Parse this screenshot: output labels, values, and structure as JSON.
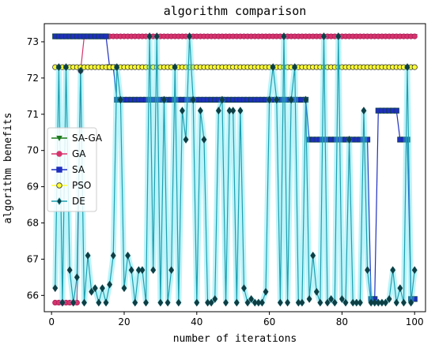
{
  "chart_data": {
    "type": "line",
    "title": "algorithm comparison",
    "xlabel": "number of iterations",
    "ylabel": "algorithm benefits",
    "xlim": [
      -2,
      103
    ],
    "ylim": [
      65.55,
      73.5
    ],
    "xticks": [
      0,
      20,
      40,
      60,
      80,
      100
    ],
    "yticks": [
      66,
      67,
      68,
      69,
      70,
      71,
      72,
      73
    ],
    "grid": false,
    "legend_position": "center-left",
    "series": [
      {
        "name": "SA-GA",
        "color": "#1b7a1b",
        "marker": "triangle-down",
        "values_desc": "constant after start",
        "x": [
          1,
          2,
          3,
          4,
          5,
          6,
          7,
          8,
          9,
          10,
          11,
          12,
          13,
          14,
          15,
          16,
          17,
          18,
          19,
          20,
          21,
          22,
          23,
          24,
          25,
          26,
          27,
          28,
          29,
          30,
          31,
          32,
          33,
          34,
          35,
          36,
          37,
          38,
          39,
          40,
          41,
          42,
          43,
          44,
          45,
          46,
          47,
          48,
          49,
          50,
          51,
          52,
          53,
          54,
          55,
          56,
          57,
          58,
          59,
          60,
          61,
          62,
          63,
          64,
          65,
          66,
          67,
          68,
          69,
          70,
          71,
          72,
          73,
          74,
          75,
          76,
          77,
          78,
          79,
          80,
          81,
          82,
          83,
          84,
          85,
          86,
          87,
          88,
          89,
          90,
          91,
          92,
          93,
          94,
          95,
          96,
          97,
          98,
          99,
          100
        ],
        "y": [
          73.15,
          73.15,
          73.15,
          73.15,
          73.15,
          73.15,
          73.15,
          73.15,
          73.15,
          73.15,
          73.15,
          73.15,
          73.15,
          73.15,
          73.15,
          73.15,
          73.15,
          73.15,
          73.15,
          73.15,
          73.15,
          73.15,
          73.15,
          73.15,
          73.15,
          73.15,
          73.15,
          73.15,
          73.15,
          73.15,
          73.15,
          73.15,
          73.15,
          73.15,
          73.15,
          73.15,
          73.15,
          73.15,
          73.15,
          73.15,
          73.15,
          73.15,
          73.15,
          73.15,
          73.15,
          73.15,
          73.15,
          73.15,
          73.15,
          73.15,
          73.15,
          73.15,
          73.15,
          73.15,
          73.15,
          73.15,
          73.15,
          73.15,
          73.15,
          73.15,
          73.15,
          73.15,
          73.15,
          73.15,
          73.15,
          73.15,
          73.15,
          73.15,
          73.15,
          73.15,
          73.15,
          73.15,
          73.15,
          73.15,
          73.15,
          73.15,
          73.15,
          73.15,
          73.15,
          73.15,
          73.15,
          73.15,
          73.15,
          73.15,
          73.15,
          73.15,
          73.15,
          73.15,
          73.15,
          73.15,
          73.15,
          73.15,
          73.15,
          73.15,
          73.15,
          73.15,
          73.15,
          73.15,
          73.15,
          73.15
        ]
      },
      {
        "name": "GA",
        "color": "#d6336c",
        "marker": "circle",
        "x": [
          1,
          2,
          3,
          4,
          5,
          6,
          7,
          8,
          9,
          10,
          11,
          12,
          13,
          14,
          15,
          16,
          17,
          18,
          19,
          20,
          21,
          22,
          23,
          24,
          25,
          26,
          27,
          28,
          29,
          30,
          31,
          32,
          33,
          34,
          35,
          36,
          37,
          38,
          39,
          40,
          41,
          42,
          43,
          44,
          45,
          46,
          47,
          48,
          49,
          50,
          51,
          52,
          53,
          54,
          55,
          56,
          57,
          58,
          59,
          60,
          61,
          62,
          63,
          64,
          65,
          66,
          67,
          68,
          69,
          70,
          71,
          72,
          73,
          74,
          75,
          76,
          77,
          78,
          79,
          80,
          81,
          82,
          83,
          84,
          85,
          86,
          87,
          88,
          89,
          90,
          91,
          92,
          93,
          94,
          95,
          96,
          97,
          98,
          99,
          100
        ],
        "y": [
          65.8,
          65.8,
          65.8,
          65.8,
          65.8,
          65.8,
          65.8,
          72.2,
          73.15,
          73.15,
          73.15,
          73.15,
          73.15,
          73.15,
          73.15,
          73.15,
          73.15,
          73.15,
          73.15,
          73.15,
          73.15,
          73.15,
          73.15,
          73.15,
          73.15,
          73.15,
          73.15,
          73.15,
          73.15,
          73.15,
          73.15,
          73.15,
          73.15,
          73.15,
          73.15,
          73.15,
          73.15,
          73.15,
          73.15,
          73.15,
          73.15,
          73.15,
          73.15,
          73.15,
          73.15,
          73.15,
          73.15,
          73.15,
          73.15,
          73.15,
          73.15,
          73.15,
          73.15,
          73.15,
          73.15,
          73.15,
          73.15,
          73.15,
          73.15,
          73.15,
          73.15,
          73.15,
          73.15,
          73.15,
          73.15,
          73.15,
          73.15,
          73.15,
          73.15,
          73.15,
          73.15,
          73.15,
          73.15,
          73.15,
          73.15,
          73.15,
          73.15,
          73.15,
          73.15,
          73.15,
          73.15,
          73.15,
          73.15,
          73.15,
          73.15,
          73.15,
          73.15,
          73.15,
          73.15,
          73.15,
          73.15,
          73.15,
          73.15,
          73.15,
          73.15,
          73.15,
          73.15,
          73.15,
          73.15,
          73.15
        ]
      },
      {
        "name": "SA",
        "color": "#1f2fbf",
        "marker": "square",
        "x": [
          1,
          2,
          3,
          4,
          5,
          6,
          7,
          8,
          9,
          10,
          11,
          12,
          13,
          14,
          15,
          16,
          17,
          18,
          19,
          20,
          21,
          22,
          23,
          24,
          25,
          26,
          27,
          28,
          29,
          30,
          31,
          32,
          33,
          34,
          35,
          36,
          37,
          38,
          39,
          40,
          41,
          42,
          43,
          44,
          45,
          46,
          47,
          48,
          49,
          50,
          51,
          52,
          53,
          54,
          55,
          56,
          57,
          58,
          59,
          60,
          61,
          62,
          63,
          64,
          65,
          66,
          67,
          68,
          69,
          70,
          71,
          72,
          73,
          74,
          75,
          76,
          77,
          78,
          79,
          80,
          81,
          82,
          83,
          84,
          85,
          86,
          87,
          88,
          89,
          90,
          91,
          92,
          93,
          94,
          95,
          96,
          97,
          98,
          99,
          100
        ],
        "y": [
          73.15,
          73.15,
          73.15,
          73.15,
          73.15,
          73.15,
          73.15,
          73.15,
          73.15,
          73.15,
          73.15,
          73.15,
          73.15,
          73.15,
          73.15,
          72.3,
          72.3,
          71.4,
          71.4,
          71.4,
          71.4,
          71.4,
          71.4,
          71.4,
          71.4,
          71.4,
          71.4,
          71.4,
          71.4,
          71.4,
          71.4,
          71.4,
          71.4,
          71.4,
          71.4,
          71.4,
          71.4,
          71.4,
          71.4,
          71.4,
          71.4,
          71.4,
          71.4,
          71.4,
          71.4,
          71.4,
          71.4,
          71.4,
          71.4,
          71.4,
          71.4,
          71.4,
          71.4,
          71.4,
          71.4,
          71.4,
          71.4,
          71.4,
          71.4,
          71.4,
          71.4,
          71.4,
          71.4,
          71.4,
          71.4,
          71.4,
          71.4,
          71.4,
          71.4,
          71.4,
          70.3,
          70.3,
          70.3,
          70.3,
          70.3,
          70.3,
          70.3,
          70.3,
          70.3,
          70.3,
          70.3,
          70.3,
          70.3,
          70.3,
          70.3,
          70.3,
          70.3,
          65.9,
          65.9,
          71.1,
          71.1,
          71.1,
          71.1,
          71.1,
          71.1,
          70.3,
          70.3,
          70.3,
          65.9,
          65.9
        ]
      },
      {
        "name": "PSO",
        "color": "#ffff33",
        "edge": "#333333",
        "marker": "circle",
        "x": [
          1,
          2,
          3,
          4,
          5,
          6,
          7,
          8,
          9,
          10,
          11,
          12,
          13,
          14,
          15,
          16,
          17,
          18,
          19,
          20,
          21,
          22,
          23,
          24,
          25,
          26,
          27,
          28,
          29,
          30,
          31,
          32,
          33,
          34,
          35,
          36,
          37,
          38,
          39,
          40,
          41,
          42,
          43,
          44,
          45,
          46,
          47,
          48,
          49,
          50,
          51,
          52,
          53,
          54,
          55,
          56,
          57,
          58,
          59,
          60,
          61,
          62,
          63,
          64,
          65,
          66,
          67,
          68,
          69,
          70,
          71,
          72,
          73,
          74,
          75,
          76,
          77,
          78,
          79,
          80,
          81,
          82,
          83,
          84,
          85,
          86,
          87,
          88,
          89,
          90,
          91,
          92,
          93,
          94,
          95,
          96,
          97,
          98,
          99,
          100
        ],
        "y": [
          72.3,
          72.3,
          72.3,
          72.3,
          72.3,
          72.3,
          72.3,
          72.3,
          72.3,
          72.3,
          72.3,
          72.3,
          72.3,
          72.3,
          72.3,
          72.3,
          72.3,
          72.3,
          72.3,
          72.3,
          72.3,
          72.3,
          72.3,
          72.3,
          72.3,
          72.3,
          72.3,
          72.3,
          72.3,
          72.3,
          72.3,
          72.3,
          72.3,
          72.3,
          72.3,
          72.3,
          72.3,
          72.3,
          72.3,
          72.3,
          72.3,
          72.3,
          72.3,
          72.3,
          72.3,
          72.3,
          72.3,
          72.3,
          72.3,
          72.3,
          72.3,
          72.3,
          72.3,
          72.3,
          72.3,
          72.3,
          72.3,
          72.3,
          72.3,
          72.3,
          72.3,
          72.3,
          72.3,
          72.3,
          72.3,
          72.3,
          72.3,
          72.3,
          72.3,
          72.3,
          72.3,
          72.3,
          72.3,
          72.3,
          72.3,
          72.3,
          72.3,
          72.3,
          72.3,
          72.3,
          72.3,
          72.3,
          72.3,
          72.3,
          72.3,
          72.3,
          72.3,
          72.3,
          72.3,
          72.3,
          72.3,
          72.3,
          72.3,
          72.3,
          72.3,
          72.3,
          72.3,
          72.3,
          72.3,
          72.3
        ]
      },
      {
        "name": "DE",
        "color": "#1f9faf",
        "glow": "#40e0f0",
        "marker": "diamond",
        "x": [
          1,
          2,
          3,
          4,
          5,
          6,
          7,
          8,
          9,
          10,
          11,
          12,
          13,
          14,
          15,
          16,
          17,
          18,
          19,
          20,
          21,
          22,
          23,
          24,
          25,
          26,
          27,
          28,
          29,
          30,
          31,
          32,
          33,
          34,
          35,
          36,
          37,
          38,
          39,
          40,
          41,
          42,
          43,
          44,
          45,
          46,
          47,
          48,
          49,
          50,
          51,
          52,
          53,
          54,
          55,
          56,
          57,
          58,
          59,
          60,
          61,
          62,
          63,
          64,
          65,
          66,
          67,
          68,
          69,
          70,
          71,
          72,
          73,
          74,
          75,
          76,
          77,
          78,
          79,
          80,
          81,
          82,
          83,
          84,
          85,
          86,
          87,
          88,
          89,
          90,
          91,
          92,
          93,
          94,
          95,
          96,
          97,
          98,
          99,
          100
        ],
        "y": [
          66.2,
          72.3,
          65.8,
          72.3,
          66.7,
          65.8,
          66.5,
          72.2,
          65.8,
          67.1,
          66.1,
          66.2,
          65.8,
          66.2,
          65.8,
          66.3,
          67.1,
          72.3,
          71.4,
          66.2,
          67.1,
          66.7,
          65.8,
          66.7,
          66.7,
          65.8,
          73.15,
          66.7,
          73.15,
          65.8,
          71.4,
          65.8,
          66.7,
          72.3,
          65.8,
          71.1,
          70.3,
          73.15,
          71.4,
          65.8,
          71.1,
          70.3,
          65.8,
          65.8,
          65.9,
          71.1,
          71.4,
          65.8,
          71.1,
          71.1,
          65.8,
          71.1,
          66.2,
          65.8,
          65.9,
          65.8,
          65.8,
          65.8,
          66.1,
          71.4,
          72.3,
          71.4,
          65.8,
          73.15,
          65.8,
          71.4,
          72.3,
          65.8,
          65.8,
          71.4,
          65.9,
          67.1,
          66.1,
          65.8,
          73.15,
          65.8,
          65.9,
          65.8,
          73.15,
          65.9,
          65.8,
          70.3,
          65.8,
          65.8,
          65.8,
          71.1,
          66.7,
          65.8,
          65.8,
          65.8,
          65.8,
          65.8,
          65.9,
          66.7,
          65.8,
          66.2,
          65.8,
          72.3,
          65.8,
          66.7
        ]
      }
    ]
  }
}
